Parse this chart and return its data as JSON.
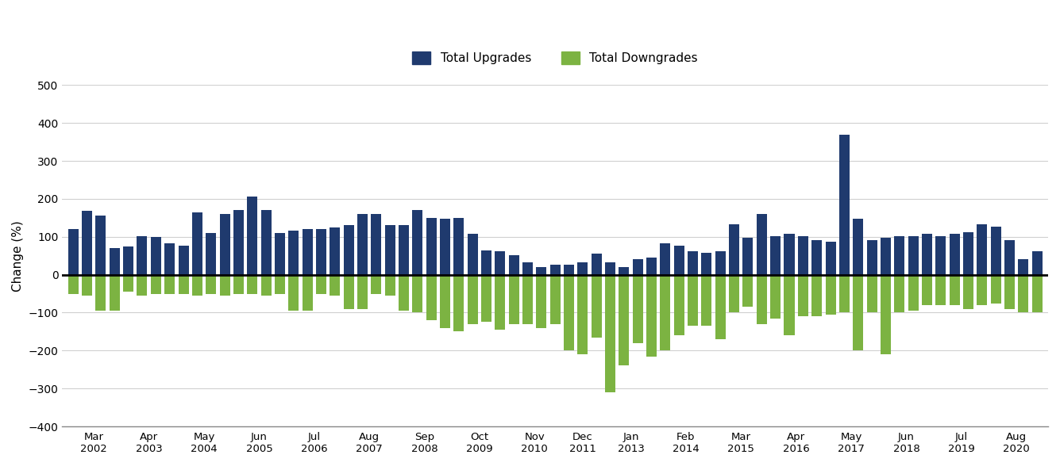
{
  "tick_labels": [
    "Mar\n2002",
    "Apr\n2003",
    "May\n2004",
    "Jun\n2005",
    "Jul\n2006",
    "Aug\n2007",
    "Sep\n2008",
    "Oct\n2009",
    "Nov\n2010",
    "Dec\n2011",
    "Jan\n2013",
    "Feb\n2014",
    "Mar\n2015",
    "Apr\n2016",
    "May\n2017",
    "Jun\n2018",
    "Jul\n2019",
    "Aug\n2020"
  ],
  "upgrades": [
    120,
    168,
    155,
    70,
    75,
    102,
    100,
    82,
    77,
    165,
    110,
    160,
    170,
    207,
    170,
    110,
    116,
    120,
    121,
    125,
    130,
    160,
    161,
    130,
    131,
    170,
    150,
    148,
    150,
    107,
    65,
    62,
    51,
    32,
    20,
    27,
    27,
    32,
    56,
    32,
    20,
    42,
    46,
    82,
    76,
    62,
    57,
    62,
    132,
    97,
    161,
    101,
    107,
    102,
    91,
    87,
    370,
    147,
    92,
    97,
    101,
    101,
    107,
    101,
    107,
    112,
    132,
    127,
    92,
    42,
    62
  ],
  "downgrades": [
    -50,
    -55,
    -95,
    -95,
    -45,
    -55,
    -50,
    -50,
    -50,
    -55,
    -50,
    -55,
    -50,
    -50,
    -55,
    -50,
    -95,
    -95,
    -50,
    -55,
    -90,
    -90,
    -50,
    -55,
    -95,
    -100,
    -120,
    -140,
    -150,
    -130,
    -125,
    -145,
    -130,
    -130,
    -140,
    -130,
    -200,
    -210,
    -165,
    -310,
    -240,
    -180,
    -215,
    -200,
    -160,
    -135,
    -135,
    -170,
    -100,
    -85,
    -130,
    -115,
    -160,
    -110,
    -110,
    -105,
    -100,
    -200,
    -100,
    -210,
    -100,
    -95,
    -80,
    -80,
    -80,
    -90,
    -80,
    -75,
    -90,
    -100,
    -100
  ],
  "upgrade_color": "#1F3A6E",
  "downgrade_color": "#7CB342",
  "ylim": [
    -400,
    500
  ],
  "yticks": [
    -400,
    -300,
    -200,
    -100,
    0,
    100,
    200,
    300,
    400,
    500
  ],
  "ylabel": "Change (%)",
  "legend_upgrade": "Total Upgrades",
  "legend_downgrade": "Total Downgrades",
  "background_color": "#ffffff",
  "grid_color": "#d0d0d0"
}
